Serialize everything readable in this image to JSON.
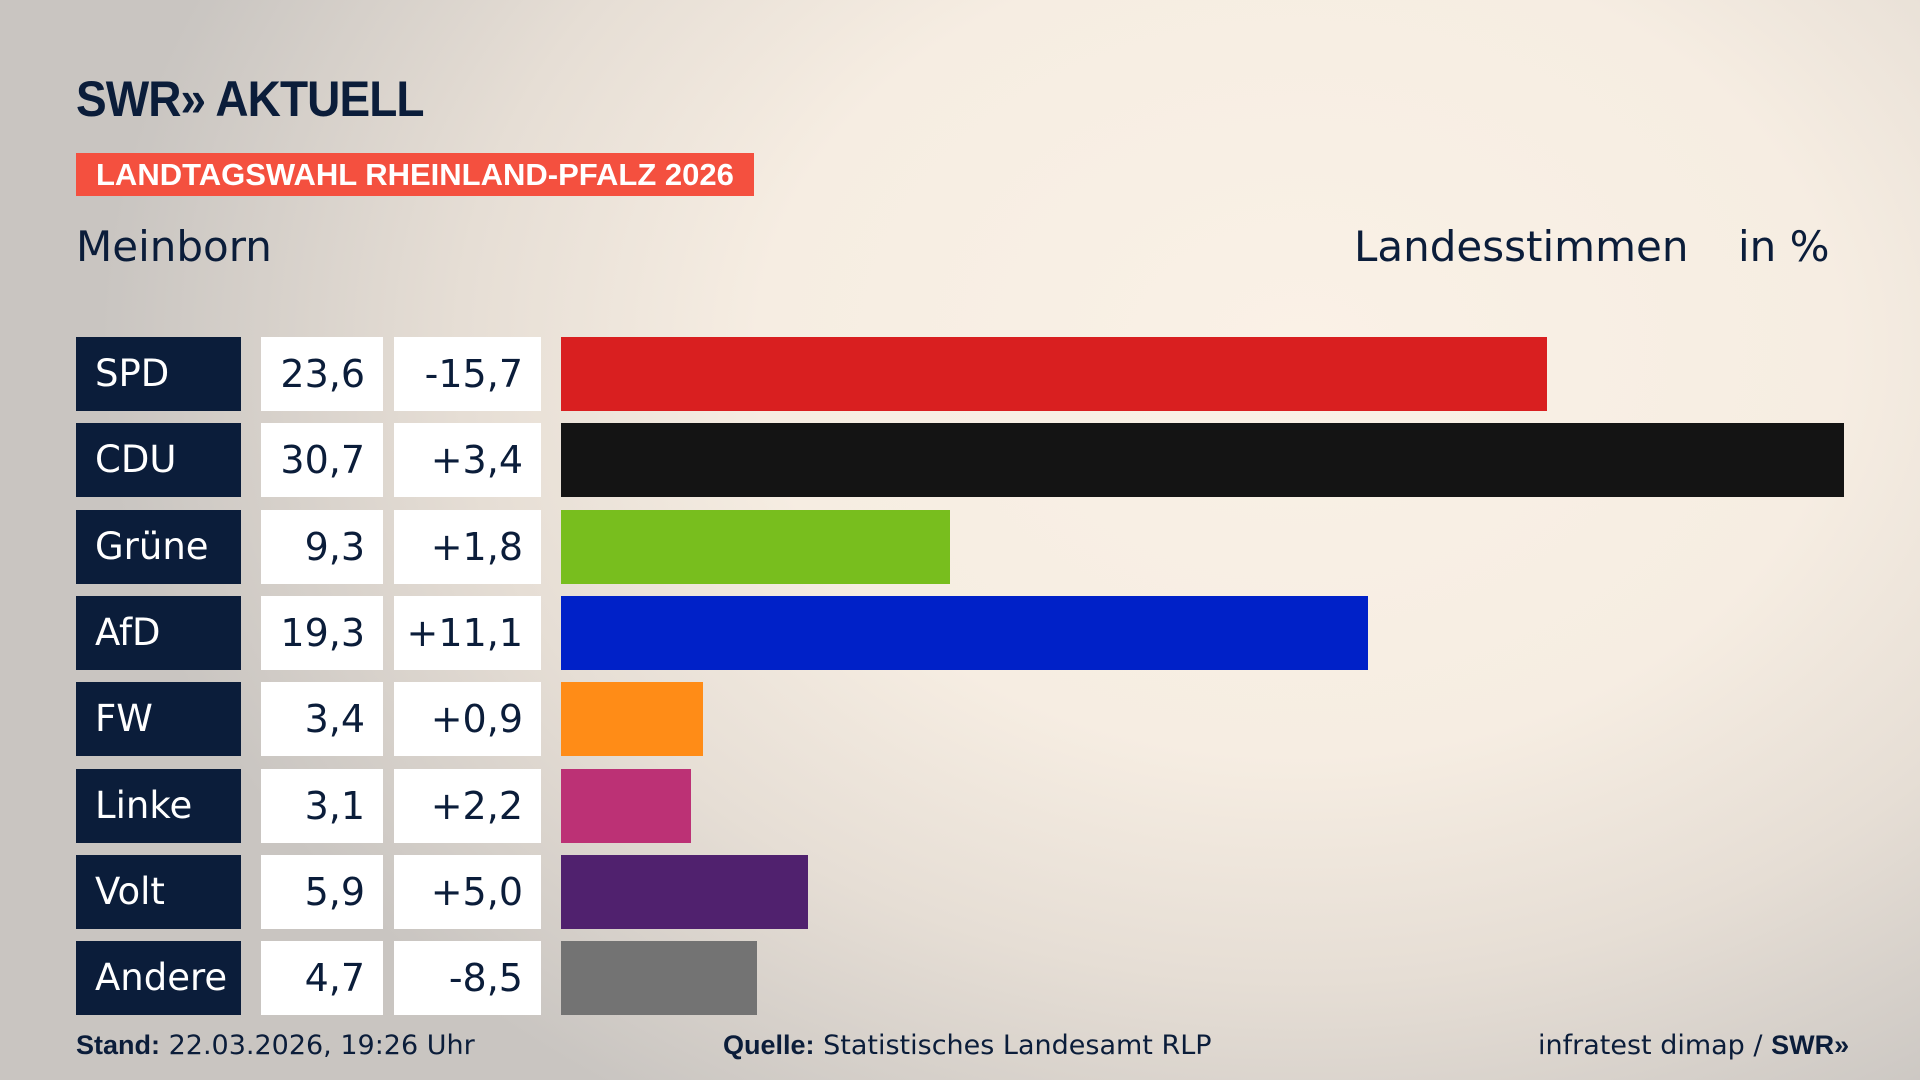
{
  "brand": {
    "logo": "SWR» AKTUELL",
    "banner": "LANDTAGSWAHL RHEINLAND-PFALZ 2026"
  },
  "header": {
    "place": "Meinborn",
    "vote_type": "Landesstimmen",
    "unit": "in %"
  },
  "chart_data": {
    "type": "bar",
    "orientation": "horizontal",
    "categories": [
      "SPD",
      "CDU",
      "Grüne",
      "AfD",
      "FW",
      "Linke",
      "Volt",
      "Andere"
    ],
    "values": [
      23.6,
      30.7,
      9.3,
      19.3,
      3.4,
      3.1,
      5.9,
      4.7
    ],
    "value_labels": [
      "23,6",
      "30,7",
      "9,3",
      "19,3",
      "3,4",
      "3,1",
      "5,9",
      "4,7"
    ],
    "change_labels": [
      "-15,7",
      "+3,4",
      "+1,8",
      "+11,1",
      "+0,9",
      "+2,2",
      "+5,0",
      "-8,5"
    ],
    "changes": [
      -15.7,
      3.4,
      1.8,
      11.1,
      0.9,
      2.2,
      5.0,
      -8.5
    ],
    "colors": [
      "#d91f20",
      "#141414",
      "#78be1e",
      "#0021c8",
      "#ff8c17",
      "#bc3175",
      "#50216e",
      "#737373"
    ],
    "xlim": [
      0,
      30.7
    ],
    "grid": false
  },
  "footer": {
    "stand_label": "Stand:",
    "stand_value": "22.03.2026, 19:26 Uhr",
    "source_label": "Quelle:",
    "source_value": "Statistisches Landesamt RLP",
    "credit": "infratest dimap /",
    "credit_logo": "SWR»"
  }
}
